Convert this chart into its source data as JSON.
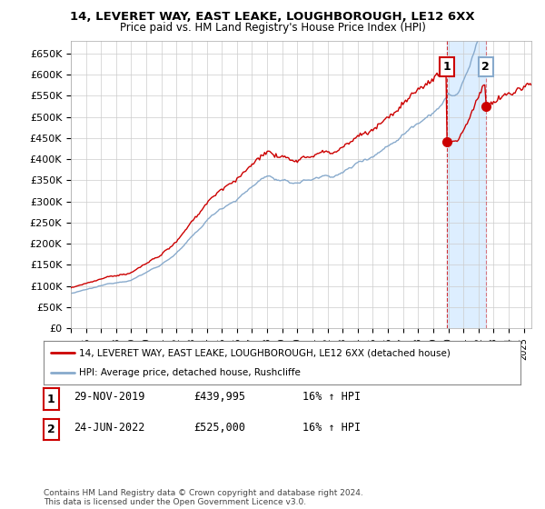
{
  "title1": "14, LEVERET WAY, EAST LEAKE, LOUGHBOROUGH, LE12 6XX",
  "title2": "Price paid vs. HM Land Registry's House Price Index (HPI)",
  "ylim": [
    0,
    680000
  ],
  "yticks": [
    0,
    50000,
    100000,
    150000,
    200000,
    250000,
    300000,
    350000,
    400000,
    450000,
    500000,
    550000,
    600000,
    650000
  ],
  "ytick_labels": [
    "£0",
    "£50K",
    "£100K",
    "£150K",
    "£200K",
    "£250K",
    "£300K",
    "£350K",
    "£400K",
    "£450K",
    "£500K",
    "£550K",
    "£600K",
    "£650K"
  ],
  "red_color": "#cc0000",
  "blue_color": "#88aacc",
  "shade_color": "#ddeeff",
  "marker1_date": 2019.91,
  "marker1_value": 439995,
  "marker1_label": "1",
  "marker2_date": 2022.48,
  "marker2_value": 525000,
  "marker2_label": "2",
  "legend_line1": "14, LEVERET WAY, EAST LEAKE, LOUGHBOROUGH, LE12 6XX (detached house)",
  "legend_line2": "HPI: Average price, detached house, Rushcliffe",
  "table_row1": [
    "1",
    "29-NOV-2019",
    "£439,995",
    "16% ↑ HPI"
  ],
  "table_row2": [
    "2",
    "24-JUN-2022",
    "£525,000",
    "16% ↑ HPI"
  ],
  "footnote": "Contains HM Land Registry data © Crown copyright and database right 2024.\nThis data is licensed under the Open Government Licence v3.0.",
  "background_color": "#ffffff",
  "grid_color": "#cccccc",
  "xmin": 1995.0,
  "xmax": 2025.5
}
